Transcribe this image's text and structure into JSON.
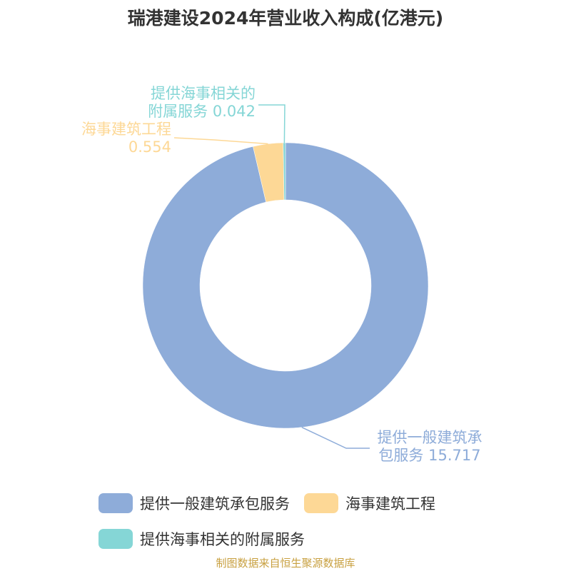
{
  "chart_data": {
    "type": "donut",
    "title": "瑞港建设2024年营业收入构成(亿港元)",
    "categories": [
      "提供一般建筑承包服务",
      "海事建筑工程",
      "提供海事相关的附属服务"
    ],
    "values": [
      15.717,
      0.554,
      0.042
    ],
    "colors": [
      "#8eacd9",
      "#fdd896",
      "#85d6d6"
    ],
    "source": "制图数据来自恒生聚源数据库"
  }
}
